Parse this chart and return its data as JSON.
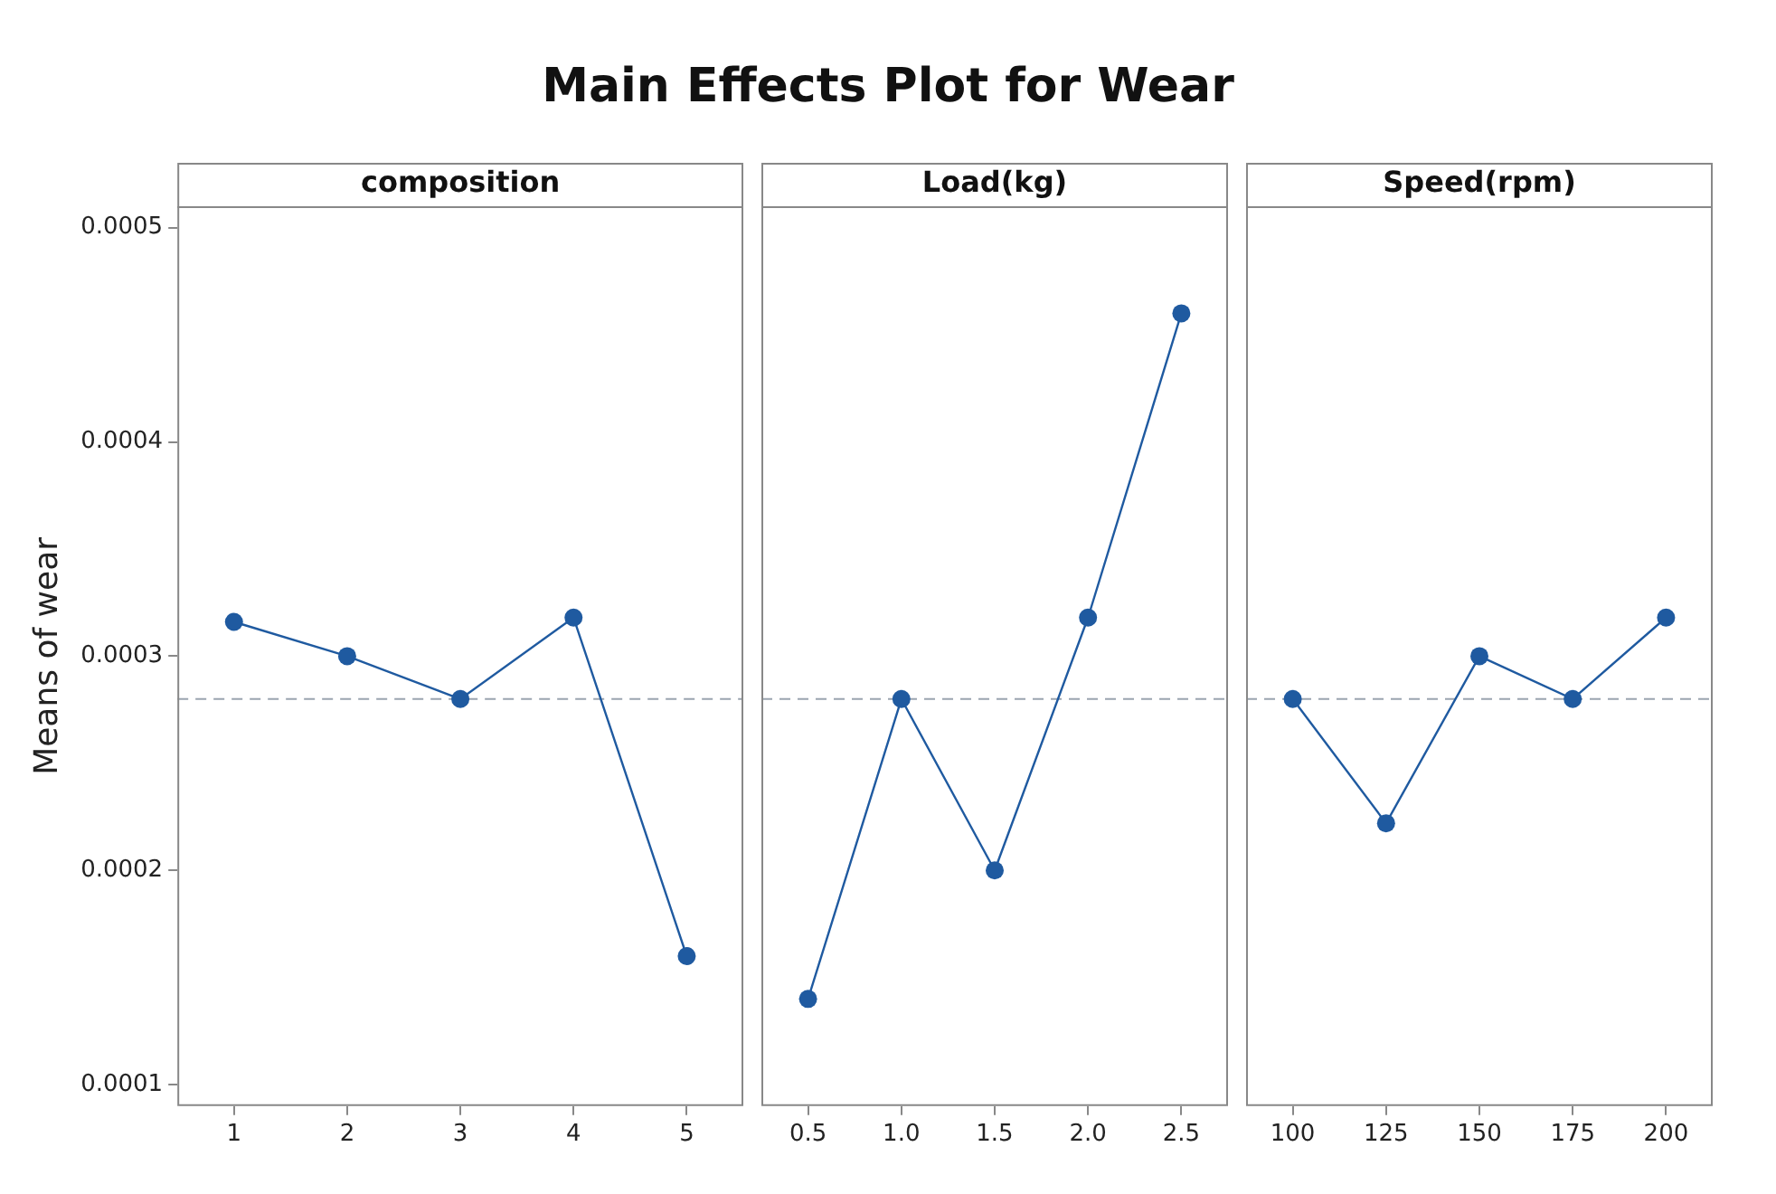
{
  "chart_data": [
    {
      "type": "line",
      "title": "Main Effects Plot for Wear",
      "xlabel": "composition",
      "ylabel": "Means of wear",
      "categories": [
        "1",
        "2",
        "3",
        "4",
        "5"
      ],
      "series": [
        {
          "color": "#1f5aa0",
          "values": [
            0.000316,
            0.0003,
            0.00028,
            0.000318,
            0.00016
          ]
        }
      ],
      "ylim": [
        9e-05,
        0.00051
      ],
      "yticks": [
        0.0001,
        0.0002,
        0.0003,
        0.0004,
        0.0005
      ],
      "ref_lines": [
        {
          "axis": "y",
          "value": 0.00028,
          "color": "#9aa4b0",
          "line_style": "dashed"
        }
      ],
      "marker": "circle",
      "grid": false,
      "legend": false
    },
    {
      "type": "line",
      "xlabel": "Load(kg)",
      "categories": [
        "0.5",
        "1.0",
        "1.5",
        "2.0",
        "2.5"
      ],
      "series": [
        {
          "color": "#1f5aa0",
          "values": [
            0.00014,
            0.00028,
            0.0002,
            0.000318,
            0.00046
          ]
        }
      ],
      "ylim": [
        9e-05,
        0.00051
      ],
      "yticks": [
        0.0001,
        0.0002,
        0.0003,
        0.0004,
        0.0005
      ],
      "tick_labels": "x",
      "ref_lines": [
        {
          "axis": "y",
          "value": 0.00028,
          "color": "#9aa4b0",
          "line_style": "dashed"
        }
      ],
      "marker": "circle",
      "grid": false,
      "legend": false
    },
    {
      "type": "line",
      "xlabel": "Speed(rpm)",
      "categories": [
        "100",
        "125",
        "150",
        "175",
        "200"
      ],
      "series": [
        {
          "color": "#1f5aa0",
          "values": [
            0.00028,
            0.000222,
            0.0003,
            0.00028,
            0.000318
          ]
        }
      ],
      "ylim": [
        9e-05,
        0.00051
      ],
      "yticks": [
        0.0001,
        0.0002,
        0.0003,
        0.0004,
        0.0005
      ],
      "tick_labels": "x",
      "ref_lines": [
        {
          "axis": "y",
          "value": 0.00028,
          "color": "#9aa4b0",
          "line_style": "dashed"
        }
      ],
      "marker": "circle",
      "grid": false,
      "legend": false
    }
  ]
}
